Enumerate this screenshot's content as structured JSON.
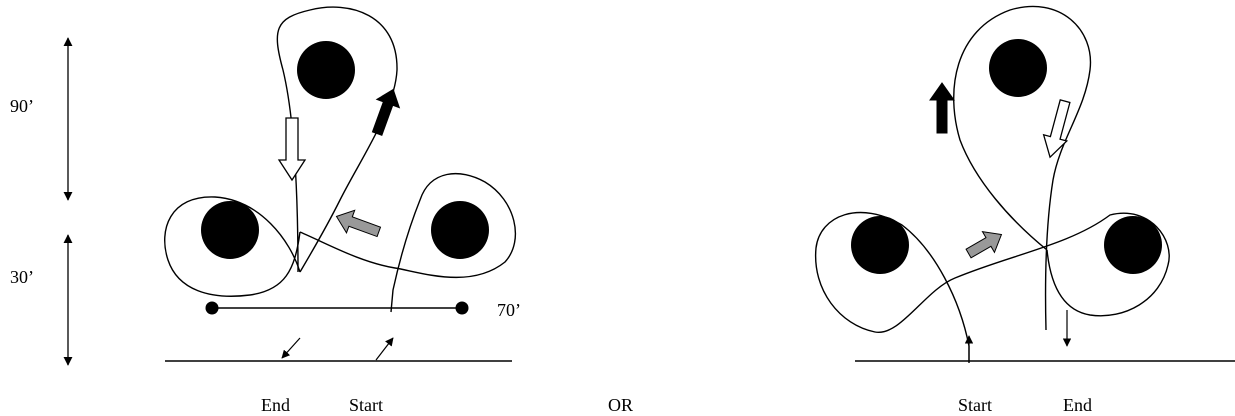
{
  "measurements": {
    "height_upper": "90’",
    "height_lower": "30’",
    "width": "70’"
  },
  "labels": {
    "left_end": "End",
    "left_start": "Start",
    "separator": "OR",
    "right_start": "Start",
    "right_end": "End"
  },
  "colors": {
    "line": "#000000",
    "barrel": "#000000",
    "arrow_dark": "#000000",
    "arrow_gray": "#999999",
    "arrow_light": "#ffffff"
  }
}
